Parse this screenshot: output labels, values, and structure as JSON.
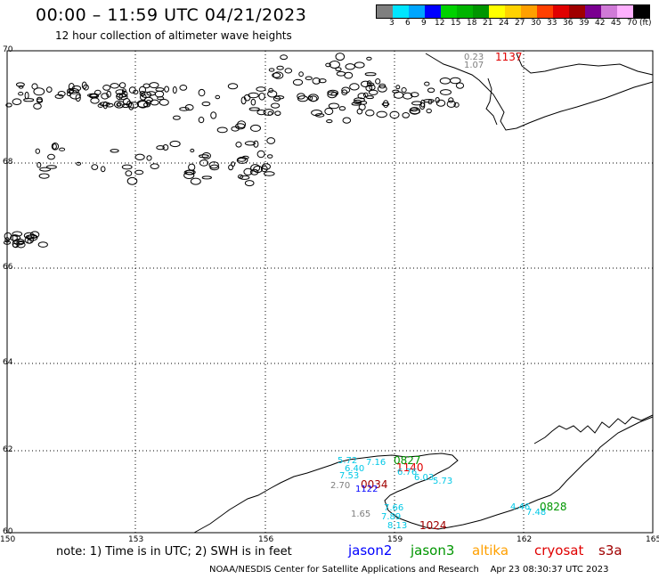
{
  "header": {
    "title": "00:00 – 11:59 UTC 04/21/2023",
    "subtitle": "12 hour collection of altimeter wave heights"
  },
  "color_scale": {
    "unit": "(ft)",
    "labels": [
      "3",
      "6",
      "9",
      "12",
      "15",
      "18",
      "21",
      "24",
      "27",
      "30",
      "33",
      "36",
      "39",
      "42",
      "45",
      "70"
    ],
    "colors": [
      "#7f7f7f",
      "#00e5ff",
      "#00a6ff",
      "#0000ff",
      "#00d200",
      "#00b400",
      "#009600",
      "#ffff00",
      "#ffd200",
      "#ffa000",
      "#ff4000",
      "#e00000",
      "#a00000",
      "#7a0090",
      "#d07ad7",
      "#ffb0ff",
      "#000000"
    ]
  },
  "map": {
    "lat_labels": [
      "70",
      "68",
      "66",
      "64",
      "62",
      "60"
    ],
    "lon_labels": [
      "150",
      "153",
      "156",
      "159",
      "162",
      "165"
    ]
  },
  "observations": {
    "gray": [
      "0.23",
      "1.07",
      "2.70",
      "1.65"
    ],
    "cyan": [
      "5.72",
      "7.16",
      "6.40",
      "7.53",
      "6.76",
      "6.03",
      "5.73",
      "7.66",
      "7.89",
      "8.13",
      "4.46",
      "7.48"
    ],
    "track_times": {
      "t1137": "1137",
      "t0034": "0034",
      "t1024": "1024",
      "t0827": "0827",
      "t1140": "1140",
      "t0828": "0828",
      "t1122": "1122"
    }
  },
  "legend": {
    "jason2": "jason2",
    "jason3": "jason3",
    "altika": "altika",
    "cryosat": "cryosat",
    "s3a": "s3a"
  },
  "footer": {
    "note": "note: 1) Time is in UTC; 2) SWH is in feet",
    "credit": "NOAA/NESDIS Center for Satellite Applications and Research",
    "timestamp": "Apr 23 08:30:37 UTC 2023"
  },
  "colors": {
    "jason2": "#0000ff",
    "jason3": "#009600",
    "altika": "#ffa000",
    "cryosat": "#e00000",
    "s3a": "#a00000"
  }
}
